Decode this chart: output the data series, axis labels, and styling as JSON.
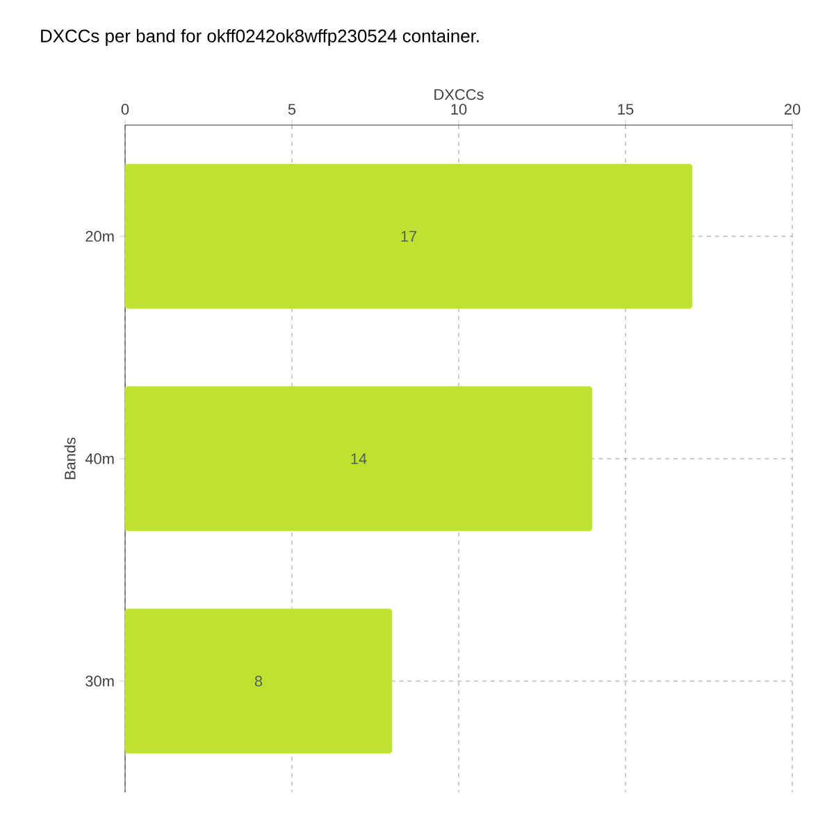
{
  "chart_data": {
    "type": "bar",
    "orientation": "horizontal",
    "title": "DXCCs per band for okff0242ok8wffp230524 container.",
    "xlabel": "DXCCs",
    "ylabel": "Bands",
    "categories": [
      "20m",
      "40m",
      "30m"
    ],
    "values": [
      17,
      14,
      8
    ],
    "color": "#bee22f",
    "xlim": [
      0,
      20
    ],
    "xticks": [
      0,
      5,
      10,
      15,
      20
    ],
    "grid": true,
    "data_labels": true
  }
}
